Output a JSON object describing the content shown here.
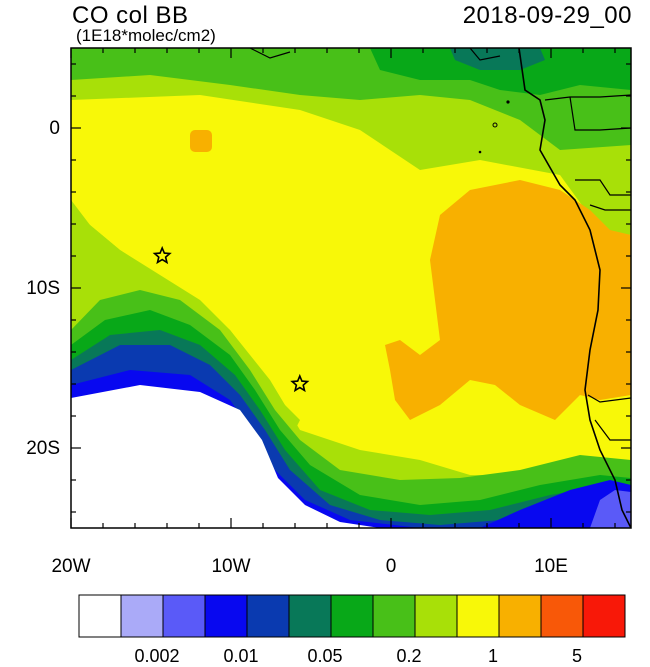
{
  "header": {
    "title": "CO col BB",
    "units": "(1E18*molec/cm2)",
    "datetime": "2018-09-29_00"
  },
  "map": {
    "lon_ticks": [
      "20W",
      "10W",
      "0",
      "10E"
    ],
    "lat_ticks": [
      "0",
      "10S",
      "20S"
    ],
    "markers": [
      {
        "name": "star-marker-1",
        "lon": -14.3,
        "lat": -8.0
      },
      {
        "name": "star-marker-2",
        "lon": -5.7,
        "lat": -16.0
      }
    ]
  },
  "colorbar": {
    "colors": [
      "#ffffff",
      "#aaaaf8",
      "#5a5af8",
      "#0808f0",
      "#0a3ab0",
      "#087858",
      "#08a818",
      "#48c018",
      "#a8e008",
      "#f8f808",
      "#f8b000",
      "#f85808",
      "#f81808"
    ],
    "labels": [
      "0.002",
      "0.01",
      "0.05",
      "0.2",
      "1",
      "5"
    ]
  }
}
